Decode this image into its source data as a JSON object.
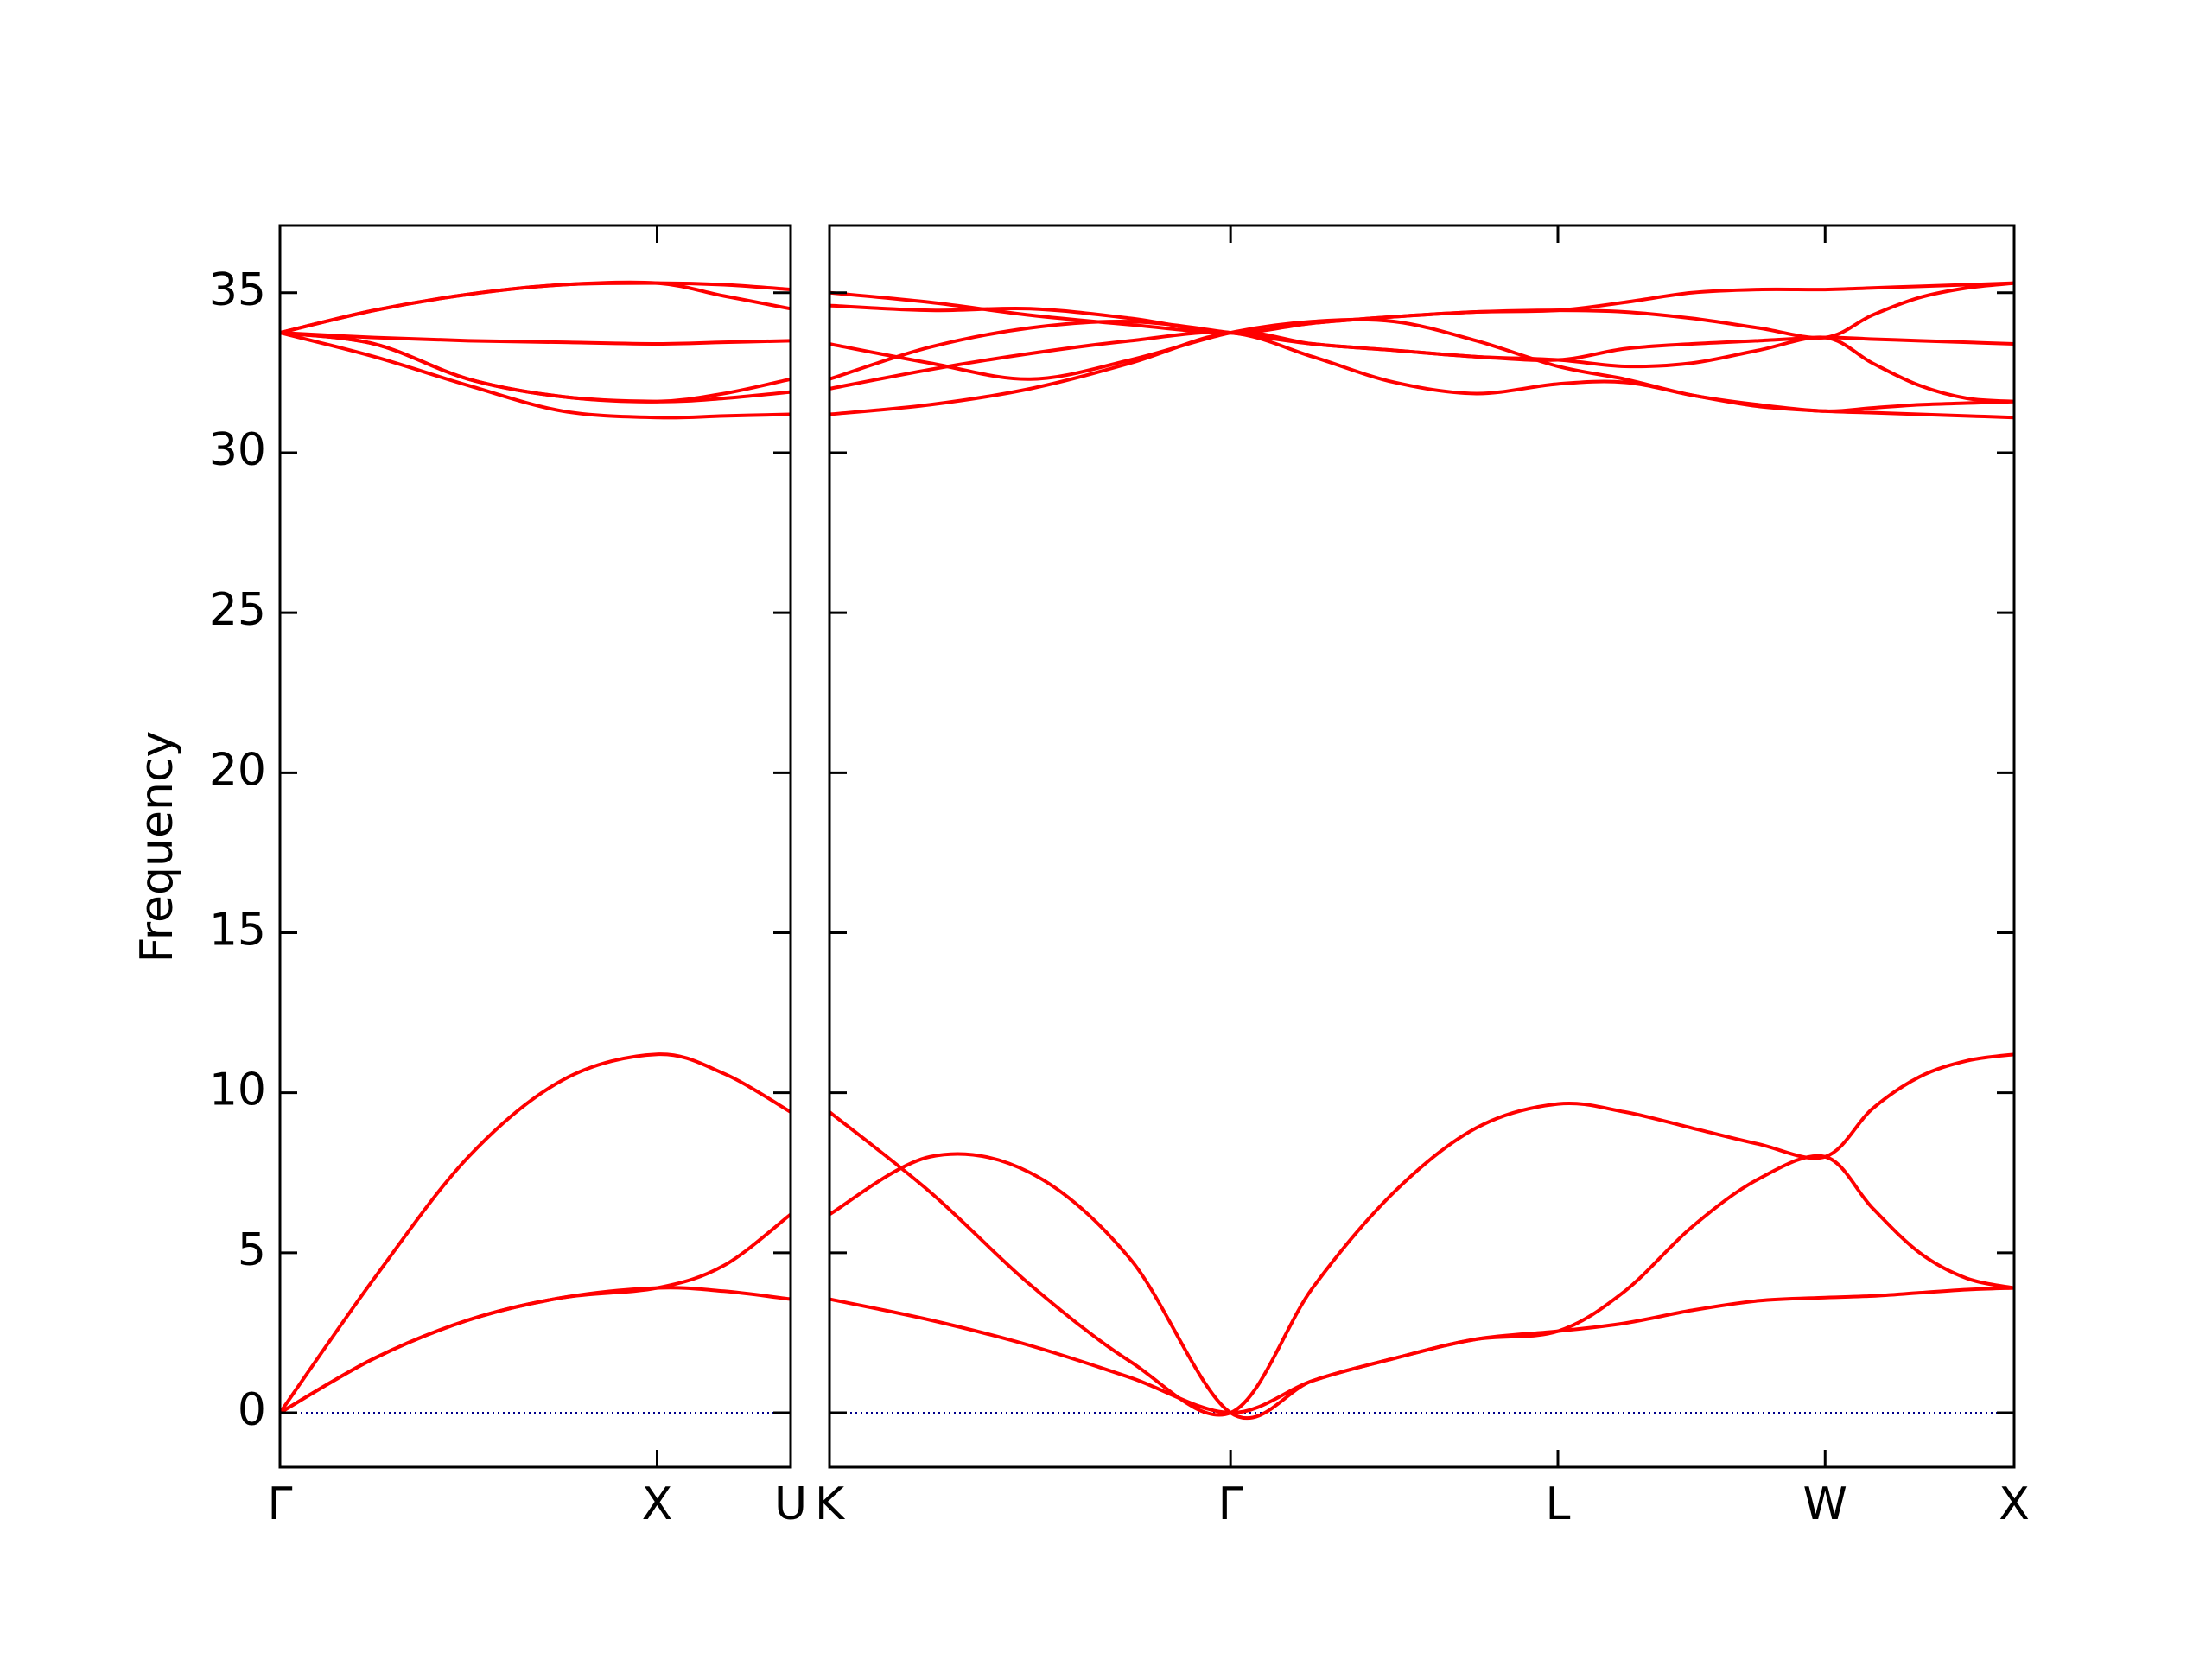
{
  "chart_data": [
    {
      "type": "line",
      "ylabel": "Frequency",
      "x": [
        0,
        0.25,
        0.5,
        0.75,
        1,
        1.177,
        1.354
      ],
      "xlim": [
        0,
        1.354
      ],
      "xticks": [
        {
          "value": 0,
          "label": "Γ"
        },
        {
          "value": 1,
          "label": "X"
        },
        {
          "value": 1.354,
          "label": "U"
        }
      ],
      "ylim": [
        -1.7,
        37.1
      ],
      "yticks": [
        0,
        5,
        10,
        15,
        20,
        25,
        30,
        35
      ],
      "show_ytick_labels": true,
      "hline": {
        "value": 0,
        "color": "#00008b"
      },
      "series": [
        {
          "color": "#ff0000",
          "values": [
            0,
            4.2,
            8.0,
            10.4,
            11.2,
            10.6,
            9.4
          ]
        },
        {
          "color": "#ff0000",
          "values": [
            0,
            1.7,
            2.9,
            3.6,
            3.9,
            4.6,
            6.2
          ]
        },
        {
          "color": "#ff0000",
          "values": [
            0,
            1.7,
            2.9,
            3.6,
            3.9,
            3.8,
            3.55
          ]
        },
        {
          "color": "#ff0000",
          "values": [
            33.75,
            34.45,
            34.95,
            35.25,
            35.3,
            35.25,
            35.1
          ]
        },
        {
          "color": "#ff0000",
          "values": [
            33.75,
            34.45,
            34.95,
            35.25,
            35.3,
            34.9,
            34.5
          ]
        },
        {
          "color": "#ff0000",
          "values": [
            33.75,
            33.6,
            33.5,
            33.45,
            33.4,
            33.45,
            33.5
          ]
        },
        {
          "color": "#ff0000",
          "values": [
            33.75,
            33.4,
            32.3,
            31.75,
            31.6,
            31.85,
            32.3
          ]
        },
        {
          "color": "#ff0000",
          "values": [
            33.75,
            33.0,
            32.1,
            31.3,
            31.1,
            31.15,
            31.2
          ]
        },
        {
          "color": "#ff0000",
          "values": [
            33.75,
            33.4,
            32.3,
            31.75,
            31.6,
            31.7,
            31.9
          ]
        }
      ]
    },
    {
      "type": "line",
      "x": [
        1.354,
        1.62,
        1.885,
        2.15,
        2.415,
        2.632,
        2.848,
        3.065,
        3.281,
        3.458,
        3.635,
        3.811,
        3.988,
        4.113,
        4.238,
        4.363,
        4.488
      ],
      "xlim": [
        1.354,
        4.488
      ],
      "xticks": [
        {
          "value": 1.354,
          "label": "K"
        },
        {
          "value": 2.415,
          "label": "Γ"
        },
        {
          "value": 3.281,
          "label": "L"
        },
        {
          "value": 3.988,
          "label": "W"
        },
        {
          "value": 4.488,
          "label": "X"
        }
      ],
      "ylim": [
        -1.7,
        37.1
      ],
      "yticks": [
        0,
        5,
        10,
        15,
        20,
        25,
        30,
        35
      ],
      "show_ytick_labels": false,
      "hline": {
        "value": 0,
        "color": "#00008b"
      },
      "series": [
        {
          "color": "#ff0000",
          "values": [
            9.4,
            6.9,
            4.0,
            1.6,
            0,
            3.9,
            6.9,
            8.9,
            9.65,
            9.4,
            8.9,
            8.4,
            8.0,
            9.5,
            10.5,
            11.0,
            11.2
          ]
        },
        {
          "color": "#ff0000",
          "values": [
            6.2,
            8.0,
            7.5,
            4.8,
            0,
            1.0,
            1.7,
            2.3,
            2.55,
            3.8,
            5.8,
            7.3,
            8.0,
            6.4,
            5.0,
            4.2,
            3.9
          ]
        },
        {
          "color": "#ff0000",
          "values": [
            3.55,
            2.9,
            2.1,
            1.1,
            0,
            1.0,
            1.7,
            2.3,
            2.55,
            2.8,
            3.2,
            3.5,
            3.6,
            3.65,
            3.75,
            3.85,
            3.9
          ]
        },
        {
          "color": "#ff0000",
          "values": [
            35.0,
            34.7,
            34.3,
            34.0,
            33.75,
            34.05,
            34.25,
            34.4,
            34.45,
            34.7,
            35.0,
            35.1,
            35.1,
            35.15,
            35.2,
            35.25,
            35.3
          ]
        },
        {
          "color": "#ff0000",
          "values": [
            34.6,
            34.45,
            34.5,
            34.2,
            33.75,
            34.05,
            34.25,
            34.4,
            34.45,
            34.4,
            34.2,
            33.9,
            33.6,
            34.3,
            34.85,
            35.15,
            35.3
          ]
        },
        {
          "color": "#ff0000",
          "values": [
            33.4,
            32.8,
            32.3,
            32.9,
            33.75,
            34.1,
            34.1,
            33.5,
            32.7,
            32.3,
            31.8,
            31.5,
            31.3,
            31.4,
            31.5,
            31.55,
            31.6
          ]
        },
        {
          "color": "#ff0000",
          "values": [
            32.3,
            33.3,
            33.9,
            34.1,
            33.75,
            33.4,
            33.2,
            33.0,
            32.9,
            33.25,
            33.4,
            33.5,
            33.6,
            33.55,
            33.5,
            33.45,
            33.4
          ]
        },
        {
          "color": "#ff0000",
          "values": [
            32.0,
            32.6,
            33.1,
            33.5,
            33.75,
            33.0,
            32.2,
            31.85,
            32.15,
            32.2,
            31.8,
            31.45,
            31.3,
            31.25,
            31.2,
            31.15,
            31.1
          ]
        },
        {
          "color": "#ff0000",
          "values": [
            31.2,
            31.5,
            32.0,
            32.8,
            33.75,
            33.4,
            33.2,
            33.0,
            32.9,
            32.7,
            32.8,
            33.2,
            33.6,
            32.8,
            32.1,
            31.7,
            31.6
          ]
        }
      ]
    }
  ]
}
